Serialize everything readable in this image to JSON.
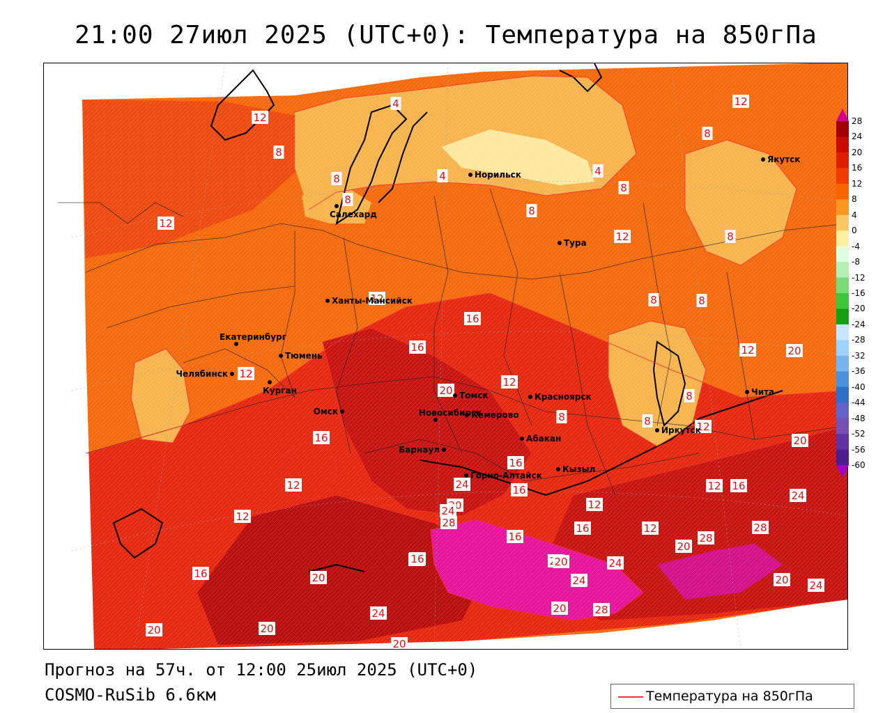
{
  "title": "21:00 27июл 2025 (UTC+0): Температура на 850гПа",
  "forecast_line": "Прогноз на 57ч. от 12:00 25июл 2025 (UTC+0)",
  "model_line": "COSMO-RuSib 6.6км",
  "legend": {
    "label": "Температура на 850гПа",
    "line_color": "#ee3333"
  },
  "colorbar": {
    "ticks": [
      "28",
      "24",
      "20",
      "16",
      "12",
      "8",
      "4",
      "0",
      "-4",
      "-8",
      "-12",
      "-16",
      "-20",
      "-24",
      "-28",
      "-32",
      "-36",
      "-40",
      "-44",
      "-48",
      "-52",
      "-56",
      "-60"
    ],
    "colors": [
      "#a00000",
      "#c80a00",
      "#e01e00",
      "#f03c00",
      "#fa6400",
      "#fa9620",
      "#fac864",
      "#fff0a0",
      "#e0ffe0",
      "#b4f0b4",
      "#78dc78",
      "#3cc83c",
      "#14a014",
      "#c8e6ff",
      "#a0d2ff",
      "#78b4f0",
      "#4b91dc",
      "#2d6ec8",
      "#6464c8",
      "#7850b4",
      "#6432a0",
      "#501e8c"
    ],
    "top_arrow_color": "#d2008c",
    "bottom_arrow_color": "#a000c8"
  },
  "cities": [
    {
      "name": "Норильск"
    },
    {
      "name": "Якутск"
    },
    {
      "name": "Салехард"
    },
    {
      "name": "Тура"
    },
    {
      "name": "Ханты-Мансийск"
    },
    {
      "name": "Екатеринбург"
    },
    {
      "name": "Тюмень"
    },
    {
      "name": "Челябинск"
    },
    {
      "name": "Курган"
    },
    {
      "name": "Омск"
    },
    {
      "name": "Новосибирск"
    },
    {
      "name": "Томск"
    },
    {
      "name": "Кемерово"
    },
    {
      "name": "Красноярск"
    },
    {
      "name": "Барнаул"
    },
    {
      "name": "Абакан"
    },
    {
      "name": "Горно-Алтайск"
    },
    {
      "name": "Кызыл"
    },
    {
      "name": "Иркутск"
    },
    {
      "name": "Чита"
    }
  ],
  "isotherm_labels": [
    "12",
    "8",
    "4",
    "12",
    "4",
    "8",
    "4",
    "8",
    "8",
    "8",
    "8",
    "12",
    "12",
    "8",
    "8",
    "8",
    "12",
    "16",
    "12",
    "16",
    "12",
    "20",
    "12",
    "8",
    "8",
    "8",
    "12",
    "16",
    "16",
    "12",
    "20",
    "20",
    "16",
    "20",
    "24",
    "24",
    "28",
    "24",
    "16",
    "16",
    "12",
    "12",
    "16",
    "16",
    "20",
    "24",
    "12",
    "12",
    "16",
    "20",
    "28",
    "24",
    "20",
    "24",
    "28",
    "20",
    "20",
    "28",
    "28",
    "24",
    "20",
    "20",
    "20",
    "24",
    "20"
  ]
}
